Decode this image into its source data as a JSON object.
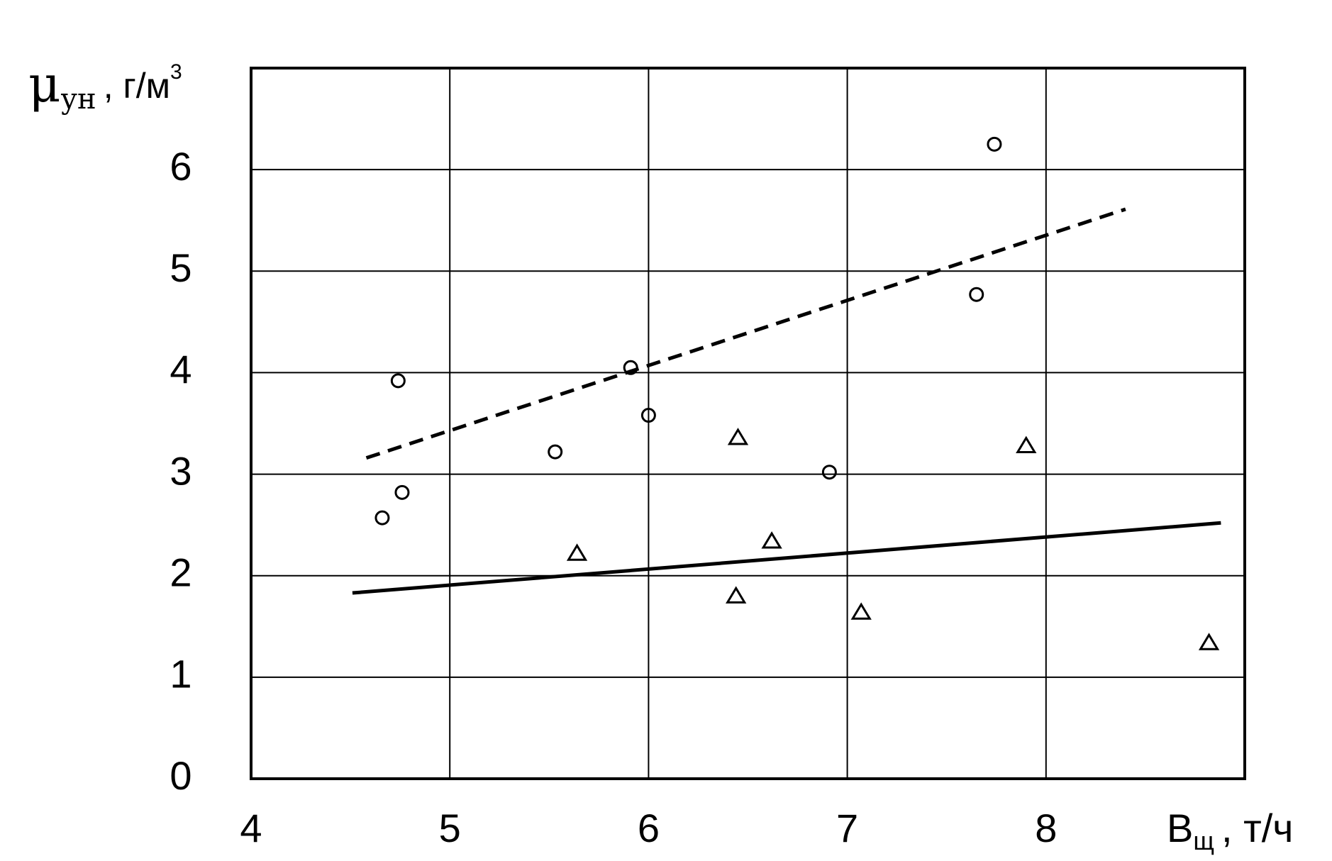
{
  "chart_data": {
    "type": "scatter",
    "y_label": {
      "main": "μ",
      "sub": "ун",
      "rest": ", г/м",
      "sup": "3"
    },
    "x_label": {
      "main": "B",
      "sub": "щ",
      "rest": ", т/ч"
    },
    "xlim": [
      4,
      9
    ],
    "ylim": [
      0,
      7
    ],
    "xticks": [
      4,
      5,
      6,
      7,
      8
    ],
    "yticks": [
      0,
      1,
      2,
      3,
      4,
      5,
      6
    ],
    "grid": true,
    "series": [
      {
        "marker": "circle",
        "color": "#000000",
        "x": [
          4.74,
          4.66,
          4.76,
          5.53,
          5.91,
          6.0,
          6.91,
          7.65,
          7.74
        ],
        "values": [
          3.92,
          2.57,
          2.82,
          3.22,
          4.05,
          3.58,
          3.02,
          4.77,
          6.25
        ]
      },
      {
        "marker": "triangle",
        "color": "#000000",
        "x": [
          5.64,
          6.45,
          6.44,
          6.62,
          7.07,
          7.9,
          8.82
        ],
        "values": [
          2.22,
          3.36,
          1.8,
          2.34,
          1.64,
          3.28,
          1.34
        ]
      },
      {
        "marker": "dashed-line",
        "color": "#000000",
        "x": [
          4.58,
          8.4
        ],
        "values": [
          3.16,
          5.61
        ]
      },
      {
        "marker": "solid-line",
        "color": "#000000",
        "x": [
          4.51,
          8.88
        ],
        "values": [
          1.83,
          2.52
        ]
      }
    ]
  }
}
